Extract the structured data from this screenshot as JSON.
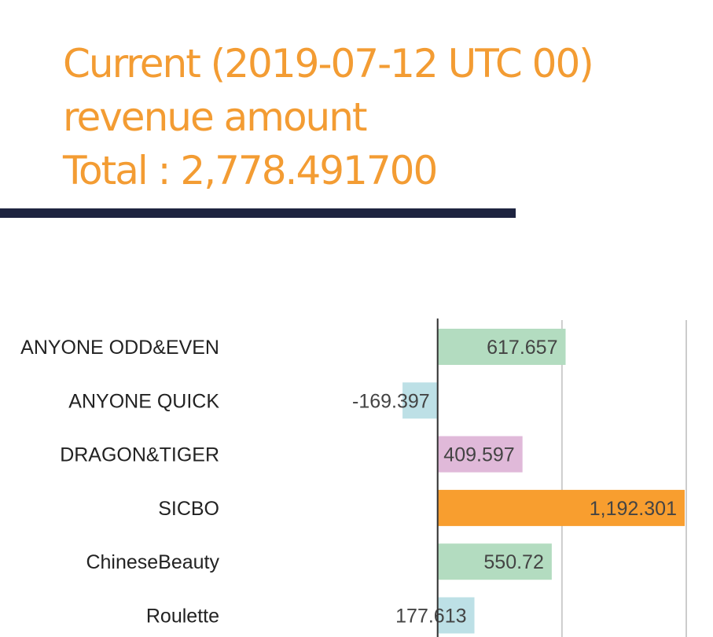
{
  "chart_data": {
    "type": "bar",
    "orientation": "horizontal",
    "title_lines": [
      "Current (2019-07-12 UTC 00)",
      "revenue amount",
      "Total : 2,778.491700"
    ],
    "categories": [
      "ANYONE ODD&EVEN",
      "ANYONE QUICK",
      "DRAGON&TIGER",
      "SICBO",
      "ChineseBeauty",
      "Roulette"
    ],
    "values": [
      617.657,
      -169.397,
      409.597,
      1192.301,
      550.72,
      177.613
    ],
    "value_labels": [
      "617.657",
      "-169.397",
      "409.597",
      "1,192.301",
      "550.72",
      "177.613"
    ],
    "colors": [
      "#b3dcc0",
      "#bde0e6",
      "#e0b9d9",
      "#f89e2f",
      "#b3dcc0",
      "#bde0e6"
    ],
    "xlim": [
      -200,
      1200
    ],
    "xticks": [
      0,
      600,
      1200
    ],
    "grid": true
  }
}
